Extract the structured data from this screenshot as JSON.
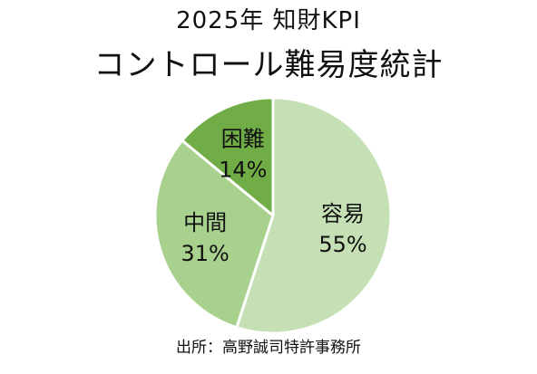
{
  "chart_data": {
    "type": "pie",
    "title": "2025年 知財KPI",
    "subtitle": "コントロール難易度統計",
    "slices": [
      {
        "category": "容易",
        "value": 55,
        "value_label": "55%",
        "color": "#c5e0b4"
      },
      {
        "category": "中間",
        "value": 31,
        "value_label": "31%",
        "color": "#a9d18e"
      },
      {
        "category": "困難",
        "value": 14,
        "value_label": "14%",
        "color": "#70ad47"
      }
    ],
    "start_angle_deg": 0,
    "direction": "clockwise",
    "slice_border_color": "#ffffff",
    "legend": "none"
  },
  "source": "出所：高野誠司特許事務所"
}
